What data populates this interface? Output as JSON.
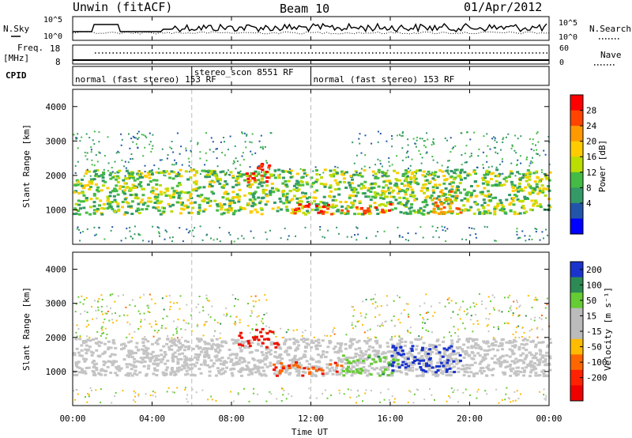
{
  "header": {
    "station": "Unwin (fitACF)",
    "beam": "Beam 10",
    "date": "01/Apr/2012"
  },
  "noise_panel": {
    "left_label": "N.Sky",
    "left_ticks": [
      "10^5",
      "10^0"
    ],
    "right_ticks": [
      "10^5",
      "10^0"
    ],
    "right_label": "N.Search"
  },
  "freq_panel": {
    "left_label_1": "Freq.",
    "left_label_2": "[MHz]",
    "left_ticks": [
      "18",
      "8"
    ],
    "right_ticks": [
      "60",
      "0"
    ],
    "right_label": "Nave"
  },
  "cpid_panel": {
    "label": "CPID",
    "programs": [
      {
        "name": "normal (fast stereo) 153 RF",
        "start_hour": 0,
        "end_hour": 6
      },
      {
        "name": "stereo_scon 8551 RF",
        "start_hour": 6,
        "end_hour": 12
      },
      {
        "name": "normal (fast stereo) 153 RF",
        "start_hour": 12,
        "end_hour": 24
      }
    ]
  },
  "power_panel": {
    "ylabel": "Slant Range [km]",
    "yticks": [
      "4000",
      "3000",
      "2000",
      "1000"
    ],
    "colorbar_label": "Power [dB]",
    "colorbar_ticks": [
      "28",
      "24",
      "20",
      "16",
      "12",
      "8",
      "4"
    ],
    "colorbar_colors": [
      "#ff0000",
      "#ff4400",
      "#ff9900",
      "#ffcc00",
      "#bbdd00",
      "#44bb44",
      "#339966",
      "#2255aa",
      "#0000ff"
    ]
  },
  "velocity_panel": {
    "ylabel": "Slant Range [km]",
    "yticks": [
      "4000",
      "3000",
      "2000",
      "1000"
    ],
    "colorbar_label": "Velocity [m s⁻¹]",
    "colorbar_ticks": [
      "200",
      "100",
      "50",
      "15",
      "-15",
      "-50",
      "-100",
      "-200"
    ],
    "colorbar_colors": [
      "#1a33cc",
      "#2d8a55",
      "#66cc33",
      "#bbbbbb",
      "#bbbbbb",
      "#ffbb00",
      "#ff6600",
      "#ff2200",
      "#ee0000"
    ]
  },
  "x_axis": {
    "ticks": [
      "00:00",
      "04:00",
      "08:00",
      "12:00",
      "16:00",
      "20:00",
      "00:00"
    ],
    "label": "Time UT"
  },
  "chart_data": [
    {
      "type": "heatmap",
      "title": "Power",
      "x": {
        "label": "Time UT",
        "range_hours": [
          0,
          24
        ]
      },
      "y": {
        "label": "Slant Range [km]",
        "range": [
          0,
          4500
        ]
      },
      "value_label": "Power [dB]",
      "value_range": [
        0,
        30
      ],
      "regions": [
        {
          "t_start": 0,
          "t_end": 24,
          "r_min": 900,
          "r_max": 2200,
          "value": 12
        },
        {
          "t_start": 8.5,
          "t_end": 10,
          "r_min": 1800,
          "r_max": 2400,
          "value": 28
        },
        {
          "t_start": 11,
          "t_end": 16,
          "r_min": 900,
          "r_max": 1200,
          "value": 28
        },
        {
          "t_start": 18,
          "t_end": 19.5,
          "r_min": 900,
          "r_max": 1600,
          "value": 24
        }
      ]
    },
    {
      "type": "heatmap",
      "title": "Velocity",
      "x": {
        "label": "Time UT",
        "range_hours": [
          0,
          24
        ]
      },
      "y": {
        "label": "Slant Range [km]",
        "range": [
          0,
          4500
        ]
      },
      "value_label": "Velocity [m s-1]",
      "value_range": [
        -200,
        200
      ],
      "regions": [
        {
          "t_start": 0,
          "t_end": 24,
          "r_min": 900,
          "r_max": 2000,
          "value": 0
        },
        {
          "t_start": 8.3,
          "t_end": 10.3,
          "r_min": 1700,
          "r_max": 2300,
          "value": -200
        },
        {
          "t_start": 10,
          "t_end": 13.5,
          "r_min": 900,
          "r_max": 1300,
          "value": -150
        },
        {
          "t_start": 13.5,
          "t_end": 16.5,
          "r_min": 900,
          "r_max": 1500,
          "value": 60
        },
        {
          "t_start": 16,
          "t_end": 19.5,
          "r_min": 1000,
          "r_max": 1800,
          "value": 200
        }
      ]
    }
  ]
}
